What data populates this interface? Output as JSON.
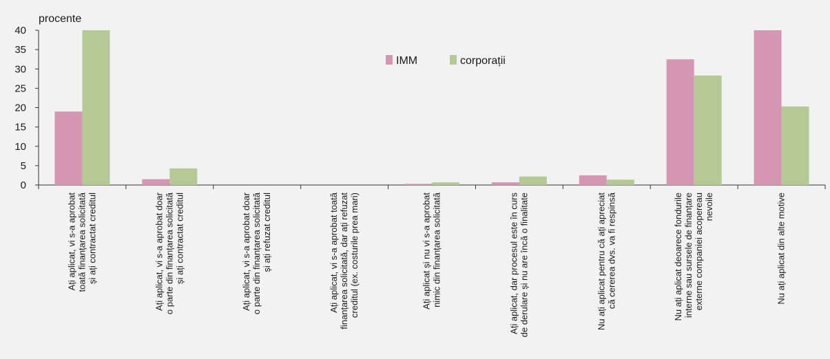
{
  "chart_data": {
    "type": "bar",
    "unit_label": "procente",
    "ylim": [
      0,
      40
    ],
    "yticks": [
      0,
      5,
      10,
      15,
      20,
      25,
      30,
      35,
      40
    ],
    "legend_position": "top-center",
    "grid": false,
    "colors": {
      "IMM": "#d596b4",
      "corporatii": "#b4c996",
      "background": "#f2f2f2",
      "axis": "#333333"
    },
    "categories": [
      [
        "Ați aplicat, vi s-a aprobat",
        "toată finanțarea solicitată",
        "și ați contractat creditul"
      ],
      [
        "Ați aplicat, vi s-a aprobat doar",
        "o parte din finanțarea solicitată",
        "și ați contractat creditul"
      ],
      [
        "Ați aplicat, vi s-a aprobat doar",
        "o parte din finanțarea solicitată",
        "și ați refuzat creditul"
      ],
      [
        "Ați aplicat, vi s-a aprobat toată",
        "finanțarea solicitată, dar ați refuzat",
        "creditul (ex. costurile prea mari)"
      ],
      [
        "Ați aplicat și nu vi s-a aprobat",
        "nimic din finanțarea solicitată"
      ],
      [
        "Ați aplicat, dar procesul este în curs",
        "de derulare și nu are încă o finalitate"
      ],
      [
        "Nu ați aplicat pentru că ați apreciat",
        "că cererea dvs. va fi respinsă"
      ],
      [
        "Nu ați aplicat deoarece fondurile",
        "interne sau sursele de finanțare",
        "externe companiei acopereau",
        "nevoile"
      ],
      [
        "Nu ați aplicat din alte motive"
      ]
    ],
    "series": [
      {
        "name": "IMM",
        "values": [
          19,
          1.5,
          0,
          0,
          0.3,
          0.7,
          2.5,
          32.5,
          40
        ]
      },
      {
        "name": "corporații",
        "values": [
          40,
          4.3,
          0,
          0,
          0.7,
          2.2,
          1.4,
          28.3,
          20.3
        ]
      }
    ]
  }
}
